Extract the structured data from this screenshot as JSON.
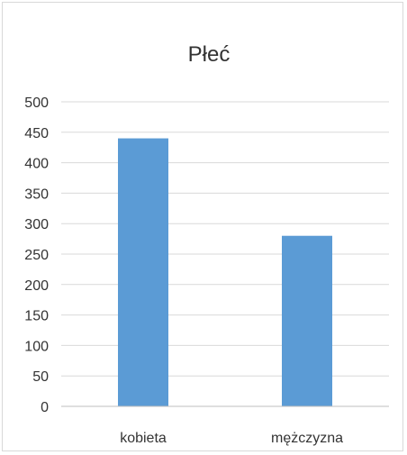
{
  "chart_data": {
    "type": "bar",
    "title": "Płeć",
    "categories": [
      "kobieta",
      "mężczyzna"
    ],
    "values": [
      440,
      280
    ],
    "ylim": [
      0,
      500
    ],
    "yticks": [
      0,
      50,
      100,
      150,
      200,
      250,
      300,
      350,
      400,
      450,
      500
    ],
    "grid": true,
    "bar_color": "#5b9bd5"
  }
}
